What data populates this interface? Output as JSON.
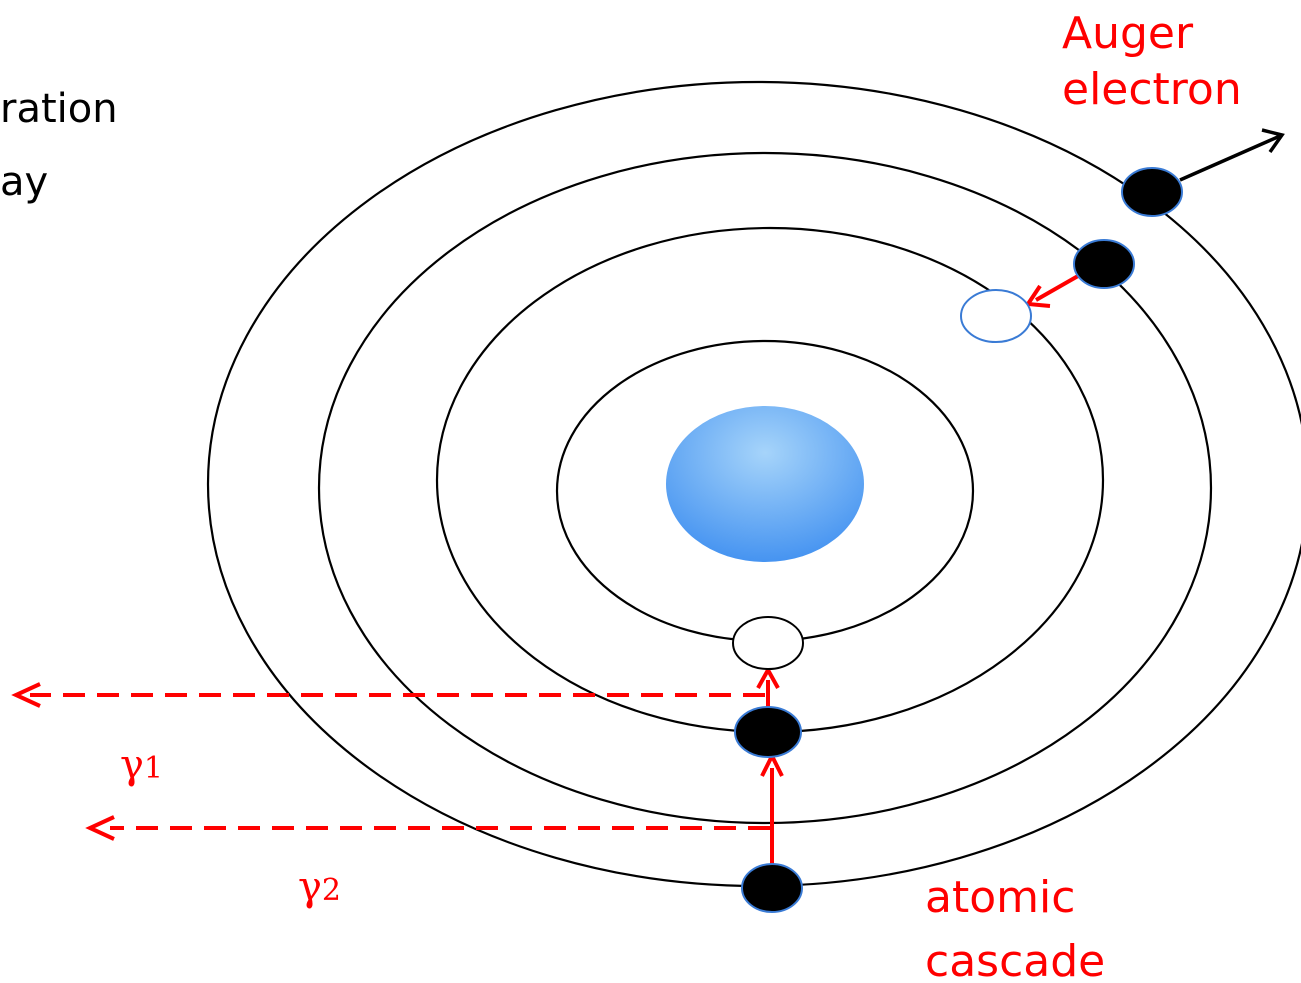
{
  "text": {
    "top_left_line1": "ration",
    "top_left_line2": "ay",
    "auger_line1": "Auger",
    "auger_line2": "electron",
    "gamma1_symbol": "γ",
    "gamma1_sub": "1",
    "gamma2_symbol": "γ",
    "gamma2_sub": "2",
    "cascade_line1": "atomic",
    "cascade_line2": "cascade"
  },
  "colors": {
    "orbit": "#000000",
    "annotation": "#ff0000",
    "electron_filled": "#000000",
    "electron_vacancy": "#ffffff",
    "electron_outline": "#3a7bd5",
    "nucleus_light": "#9fd0f8",
    "nucleus_dark": "#3f93f0"
  },
  "diagram": {
    "orbits": 4,
    "electrons_filled": 4,
    "vacancies": 2,
    "photon_arrows": 2
  }
}
